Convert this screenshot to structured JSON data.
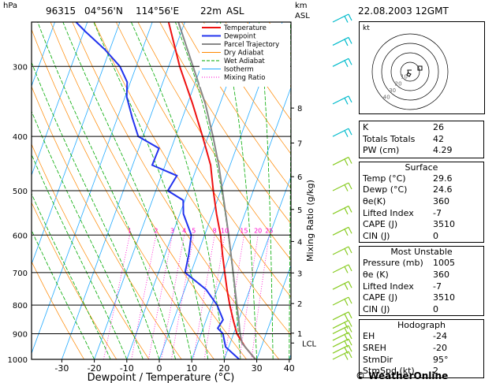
{
  "header": {
    "station": "96315",
    "lat": "04°56'N",
    "lon": "114°56'E",
    "elev": "22m",
    "elev_unit": "ASL",
    "date": "22.08.2003 12GMT",
    "hpa_label": "hPa",
    "km_label": "km",
    "asl_label": "ASL"
  },
  "chart_data": {
    "type": "line",
    "title": "96315 04°56'N 114°56'E 22m ASL",
    "xlabel": "Dewpoint / Temperature (°C)",
    "ylabel_left": "hPa",
    "ylabel_right": "Mixing Ratio (g/kg)",
    "x_ticks": [
      -30,
      -20,
      -10,
      0,
      10,
      20,
      30,
      40
    ],
    "xlim": [
      -40,
      40
    ],
    "p_ticks": [
      300,
      400,
      500,
      600,
      700,
      800,
      900,
      1000
    ],
    "ylim_hpa": [
      1000,
      250
    ],
    "y_scale": "log",
    "km_ticks": [
      {
        "km": "1",
        "p": 898
      },
      {
        "km": "2",
        "p": 795
      },
      {
        "km": "3",
        "p": 701
      },
      {
        "km": "4",
        "p": 616
      },
      {
        "km": "5",
        "p": 540
      },
      {
        "km": "6",
        "p": 472
      },
      {
        "km": "7",
        "p": 411
      },
      {
        "km": "8",
        "p": 356
      }
    ],
    "lcl": {
      "label": "LCL",
      "p": 935
    },
    "mixing_ratio_labels": [
      "1",
      "2",
      "3",
      "4",
      "5",
      "8",
      "10",
      "15",
      "20",
      "25"
    ],
    "legend": [
      "Temperature",
      "Dewpoint",
      "Parcel Trajectory",
      "Dry Adiabat",
      "Wet Adiabat",
      "Isotherm",
      "Mixing Ratio"
    ],
    "legend_position": "top-right",
    "series": [
      {
        "name": "Temperature",
        "color": "#ee1111",
        "points": [
          [
            1000,
            29.6
          ],
          [
            950,
            25.0
          ],
          [
            900,
            21.0
          ],
          [
            850,
            18.3
          ],
          [
            800,
            15.6
          ],
          [
            750,
            13.0
          ],
          [
            700,
            10.4
          ],
          [
            650,
            7.7
          ],
          [
            600,
            4.9
          ],
          [
            550,
            1.3
          ],
          [
            500,
            -2.3
          ],
          [
            450,
            -6.0
          ],
          [
            400,
            -11.7
          ],
          [
            350,
            -18.4
          ],
          [
            300,
            -26.6
          ],
          [
            250,
            -35.0
          ]
        ]
      },
      {
        "name": "Dewpoint",
        "color": "#2233ee",
        "points": [
          [
            1000,
            24.6
          ],
          [
            950,
            19.0
          ],
          [
            900,
            16.7
          ],
          [
            880,
            14.5
          ],
          [
            850,
            15.2
          ],
          [
            800,
            11.7
          ],
          [
            750,
            6.5
          ],
          [
            700,
            -1.8
          ],
          [
            650,
            -2.7
          ],
          [
            600,
            -4.1
          ],
          [
            550,
            -8.9
          ],
          [
            520,
            -10.5
          ],
          [
            500,
            -16.3
          ],
          [
            470,
            -15.2
          ],
          [
            450,
            -24.0
          ],
          [
            420,
            -23.8
          ],
          [
            400,
            -31.5
          ],
          [
            370,
            -35.5
          ],
          [
            340,
            -39.5
          ],
          [
            320,
            -41.0
          ],
          [
            300,
            -45.0
          ],
          [
            280,
            -51.5
          ],
          [
            260,
            -59.5
          ],
          [
            250,
            -63.5
          ]
        ]
      },
      {
        "name": "Parcel Trajectory",
        "color": "#888888",
        "points": [
          [
            1000,
            29.6
          ],
          [
            935,
            23.6
          ],
          [
            900,
            22.0
          ],
          [
            850,
            20.0
          ],
          [
            800,
            17.8
          ],
          [
            700,
            13.0
          ],
          [
            600,
            7.4
          ],
          [
            500,
            0.5
          ],
          [
            450,
            -3.5
          ],
          [
            400,
            -8.5
          ],
          [
            350,
            -14.5
          ],
          [
            300,
            -22.5
          ],
          [
            250,
            -32.0
          ]
        ]
      }
    ],
    "wind_barbs_pressure": [
      1000,
      975,
      950,
      925,
      900,
      880,
      850,
      800,
      750,
      700,
      650,
      600,
      550,
      500,
      450,
      400,
      350,
      300,
      275,
      250
    ]
  },
  "hodograph": {
    "unit_label": "kt",
    "ring_labels": [
      "10",
      "20",
      "30",
      "40"
    ]
  },
  "indices": [
    {
      "label": "K",
      "value": "26"
    },
    {
      "label": "Totals Totals",
      "value": "42"
    },
    {
      "label": "PW (cm)",
      "value": "4.29"
    }
  ],
  "surface": {
    "title": "Surface",
    "rows": [
      {
        "label": "Temp (°C)",
        "value": "29.6"
      },
      {
        "label": "Dewp (°C)",
        "value": "24.6"
      },
      {
        "label": "θe(K)",
        "value": "360"
      },
      {
        "label": "Lifted Index",
        "value": "-7"
      },
      {
        "label": "CAPE (J)",
        "value": "3510"
      },
      {
        "label": "CIN (J)",
        "value": "0"
      }
    ]
  },
  "most_unstable": {
    "title": "Most Unstable",
    "rows": [
      {
        "label": "Pressure (mb)",
        "value": "1005"
      },
      {
        "label": "θe (K)",
        "value": "360"
      },
      {
        "label": "Lifted Index",
        "value": "-7"
      },
      {
        "label": "CAPE (J)",
        "value": "3510"
      },
      {
        "label": "CIN (J)",
        "value": "0"
      }
    ]
  },
  "hodograph_table": {
    "title": "Hodograph",
    "rows": [
      {
        "label": "EH",
        "value": "-24"
      },
      {
        "label": "SREH",
        "value": "-20"
      },
      {
        "label": "StmDir",
        "value": "95°"
      },
      {
        "label": "StmSpd (kt)",
        "value": "2"
      }
    ]
  },
  "credit": "© WeatherOnline",
  "colors": {
    "temperature": "#ee1111",
    "dewpoint": "#2233ee",
    "parcel": "#888888",
    "dry_adiabat": "#ff8800",
    "wet_adiabat": "#00aa00",
    "isotherm": "#22aaff",
    "mixing_ratio": "#ff00cc",
    "barbs_high": "#00bbcc",
    "barbs_low": "#88cc22"
  }
}
